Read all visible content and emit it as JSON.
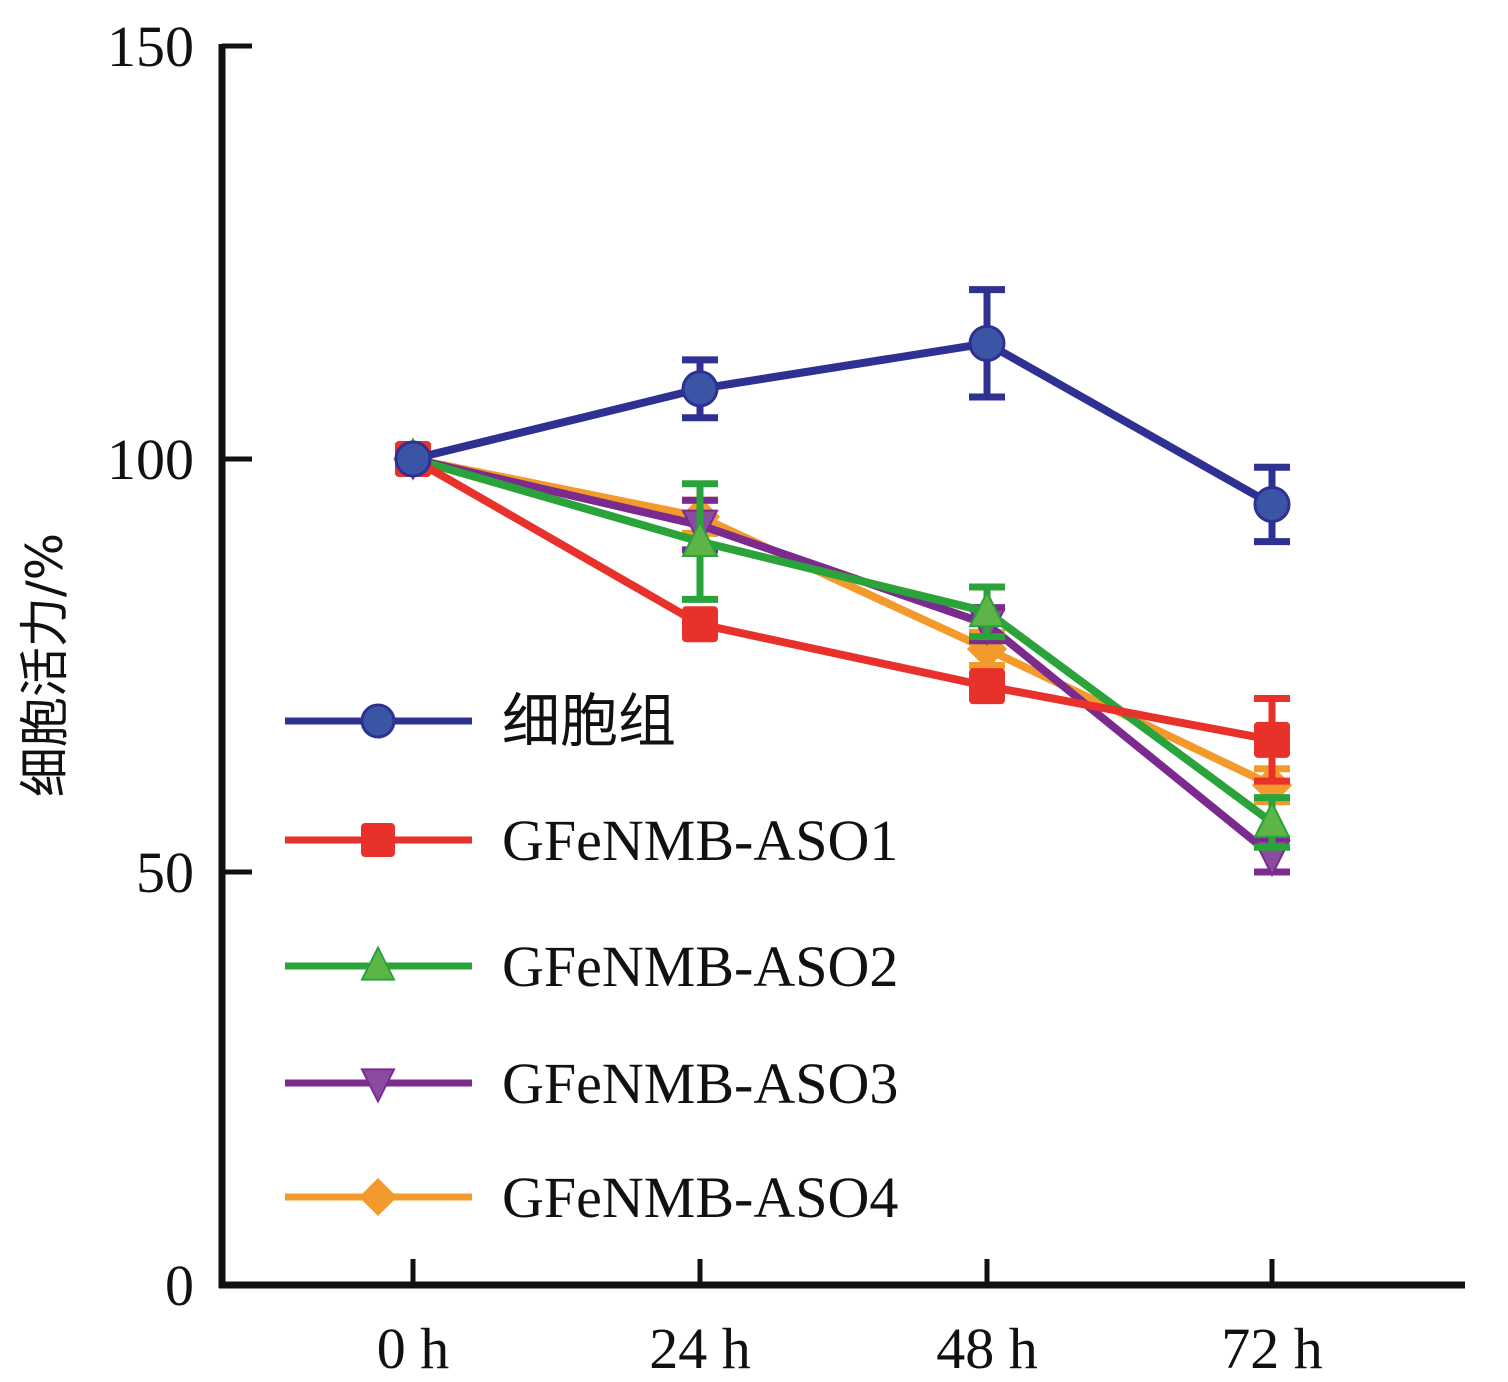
{
  "chart_data": {
    "type": "line",
    "title": "",
    "xlabel": "",
    "ylabel": "细胞活力/%",
    "categories": [
      "0 h",
      "24 h",
      "48 h",
      "72 h"
    ],
    "ylim": [
      0,
      150
    ],
    "yticks": [
      0,
      50,
      100,
      150
    ],
    "grid": false,
    "legend_position": "lower-left",
    "series": [
      {
        "name": "细胞组",
        "color": "#2E3192",
        "fill": "#3A55A4",
        "marker": "circle",
        "values": [
          100,
          108.5,
          114,
          94.5
        ],
        "errors": [
          0,
          3.5,
          6.5,
          4.5
        ]
      },
      {
        "name": "GFeNMB-ASO1",
        "color": "#E8312A",
        "fill": "#E8312A",
        "marker": "square",
        "values": [
          100,
          80,
          72.5,
          66
        ],
        "errors": [
          0,
          0,
          0,
          5
        ]
      },
      {
        "name": "GFeNMB-ASO2",
        "color": "#2AA33A",
        "fill": "#5DB548",
        "marker": "triangle-up",
        "values": [
          100,
          90,
          81.5,
          56
        ],
        "errors": [
          0,
          7,
          3,
          3
        ]
      },
      {
        "name": "GFeNMB-ASO3",
        "color": "#7B2A8E",
        "fill": "#8A4BA0",
        "marker": "triangle-down",
        "values": [
          100,
          92,
          80,
          52
        ],
        "errors": [
          0,
          3,
          2,
          2
        ]
      },
      {
        "name": "GFeNMB-ASO4",
        "color": "#F39A2C",
        "fill": "#F39A2C",
        "marker": "diamond",
        "values": [
          100,
          93,
          77,
          60.5
        ],
        "errors": [
          0,
          2,
          2,
          2
        ]
      }
    ]
  }
}
